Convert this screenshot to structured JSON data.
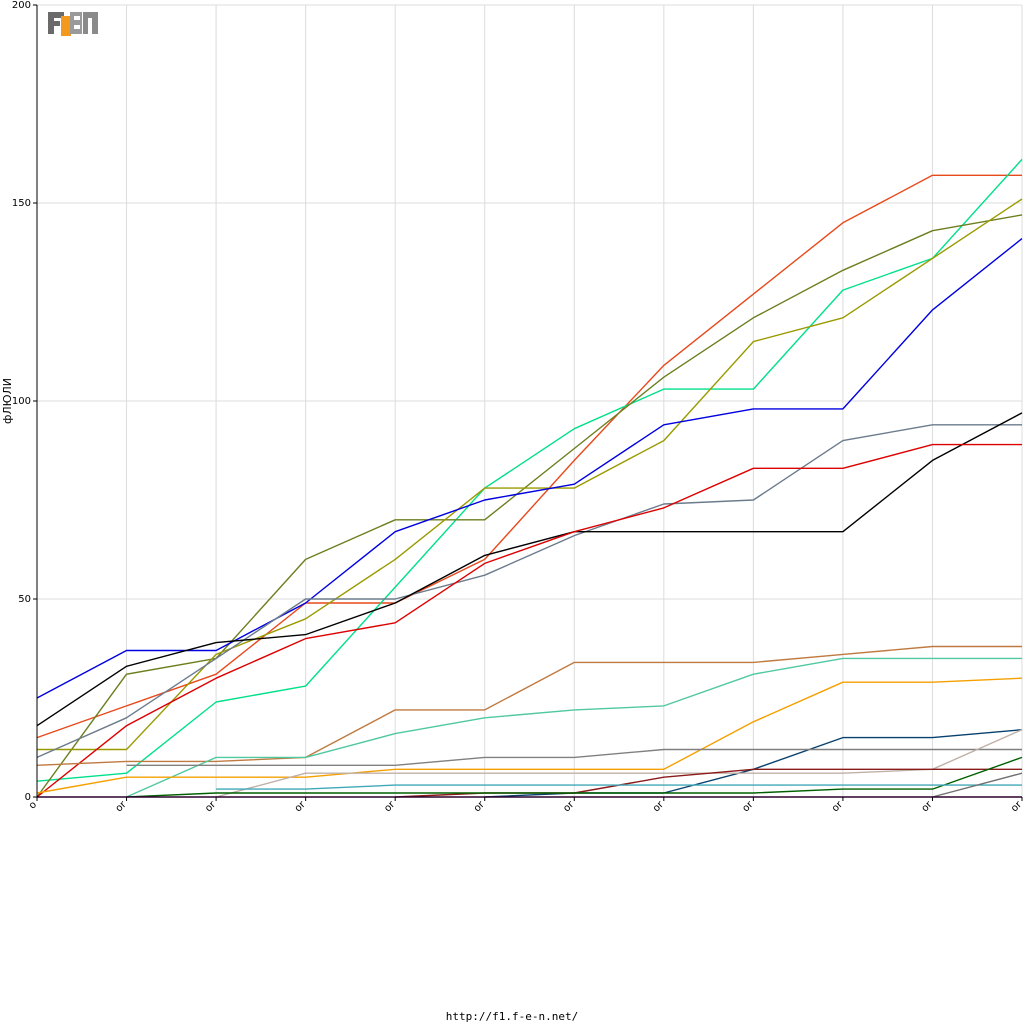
{
  "logo": {
    "text": "F1EN"
  },
  "footer": {
    "url": "http://f1.f-e-n.net/"
  },
  "chart_data": {
    "type": "line",
    "title": "",
    "ylabel": "фЛЮЛИ",
    "xlabel": "",
    "ylim": [
      0,
      200
    ],
    "yticks": [
      0,
      50,
      100,
      150,
      200
    ],
    "x_tick_labels": [
      "o",
      "or",
      "or",
      "or",
      "or",
      "or",
      "or",
      "or",
      "or",
      "or",
      "or",
      "or"
    ],
    "grid": true,
    "series": [
      {
        "color": "#e8491b",
        "values": [
          15,
          23,
          31,
          49,
          49,
          60,
          85,
          109,
          127,
          145,
          157,
          157
        ]
      },
      {
        "color": "#00e08a",
        "values": [
          4,
          6,
          24,
          28,
          53,
          78,
          93,
          103,
          103,
          128,
          136,
          161
        ]
      },
      {
        "color": "#6b7f1e",
        "values": [
          0,
          31,
          35,
          60,
          70,
          70,
          88,
          106,
          121,
          133,
          143,
          147
        ]
      },
      {
        "color": "#9a9a00",
        "values": [
          12,
          12,
          36,
          45,
          60,
          78,
          78,
          90,
          115,
          121,
          136,
          151
        ]
      },
      {
        "color": "#0000e0",
        "values": [
          25,
          37,
          37,
          49,
          67,
          75,
          79,
          94,
          98,
          98,
          123,
          141
        ]
      },
      {
        "color": "#6b7b8c",
        "values": [
          10,
          20,
          35,
          50,
          50,
          56,
          66,
          74,
          75,
          90,
          94,
          94
        ]
      },
      {
        "color": "#000000",
        "values": [
          18,
          33,
          39,
          41,
          49,
          61,
          67,
          67,
          67,
          67,
          85,
          97
        ]
      },
      {
        "color": "#dd0000",
        "values": [
          0,
          18,
          30,
          40,
          44,
          59,
          67,
          73,
          83,
          83,
          89,
          89
        ]
      },
      {
        "color": "#c07a40",
        "values": [
          8,
          9,
          9,
          10,
          22,
          22,
          34,
          34,
          34,
          36,
          38,
          38
        ]
      },
      {
        "color": "#50c8a0",
        "values": [
          null,
          0,
          10,
          10,
          16,
          20,
          22,
          23,
          31,
          35,
          35,
          35
        ]
      },
      {
        "color": "#f5a000",
        "values": [
          1,
          5,
          5,
          5,
          7,
          7,
          7,
          7,
          19,
          29,
          29,
          30
        ]
      },
      {
        "color": "#08406e",
        "values": [
          null,
          null,
          null,
          null,
          null,
          0,
          1,
          1,
          7,
          15,
          15,
          17
        ]
      },
      {
        "color": "#808080",
        "values": [
          null,
          8,
          8,
          8,
          8,
          10,
          10,
          12,
          12,
          12,
          12,
          12
        ]
      },
      {
        "color": "#c0b0a8",
        "values": [
          null,
          null,
          0,
          6,
          6,
          6,
          6,
          6,
          6,
          6,
          7,
          17
        ]
      },
      {
        "color": "#8b1a1a",
        "values": [
          null,
          null,
          null,
          null,
          0,
          1,
          1,
          5,
          7,
          7,
          7,
          7
        ]
      },
      {
        "color": "#006000",
        "values": [
          null,
          0,
          1,
          1,
          1,
          1,
          1,
          1,
          1,
          2,
          2,
          10
        ]
      },
      {
        "color": "#40a8b8",
        "values": [
          null,
          null,
          2,
          2,
          3,
          3,
          3,
          3,
          3,
          3,
          3,
          3
        ]
      },
      {
        "color": "#707070",
        "values": [
          null,
          null,
          null,
          null,
          null,
          null,
          null,
          null,
          null,
          null,
          0,
          6
        ]
      },
      {
        "color": "#880088",
        "values": [
          0,
          0,
          0,
          0,
          0,
          0,
          0,
          0,
          0,
          0,
          0,
          0
        ]
      }
    ]
  }
}
